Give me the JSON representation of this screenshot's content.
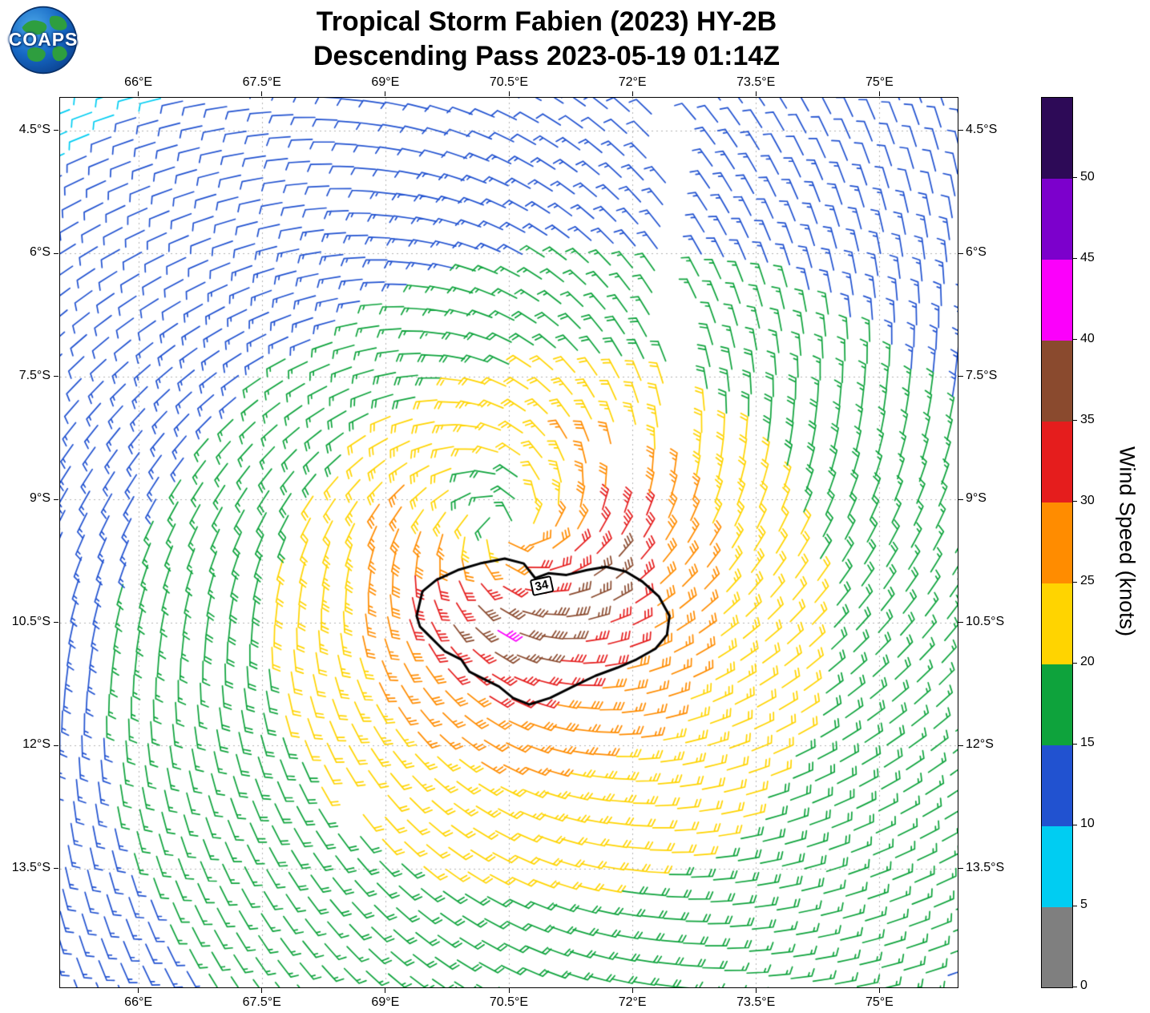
{
  "header": {
    "title_line1": "Tropical Storm Fabien (2023) HY-2B",
    "title_line2": "Descending Pass 2023-05-19 01:14Z"
  },
  "logo": {
    "text": "COAPS"
  },
  "chart_data": {
    "type": "wind_barb_map",
    "title": "Tropical Storm Fabien (2023) HY-2B",
    "subtitle": "Descending Pass 2023-05-19 01:14Z",
    "satellite": "HY-2B",
    "units": "knots",
    "lon_range": [
      65.05,
      75.95
    ],
    "lat_range": [
      -4.1,
      -14.95
    ],
    "x_ticks": {
      "values": [
        66,
        67.5,
        69,
        70.5,
        72,
        73.5,
        75
      ],
      "labels": [
        "66°E",
        "67.5°E",
        "69°E",
        "70.5°E",
        "72°E",
        "73.5°E",
        "75°E"
      ]
    },
    "y_ticks": {
      "values": [
        -4.5,
        -6,
        -7.5,
        -9,
        -10.5,
        -12,
        -13.5
      ],
      "labels": [
        "4.5°S",
        "6°S",
        "7.5°S",
        "9°S",
        "10.5°S",
        "12°S",
        "13.5°S"
      ]
    },
    "barb_grid": {
      "spacing_deg": 0.27,
      "angle_deg": -7
    },
    "wind_model": {
      "rotation": "clockwise",
      "center_lonlat": [
        70.5,
        -9.3
      ],
      "radius_max_wind_deg": 1.4,
      "speed_at_center_knots": 20,
      "max_mean_speed_knots": 31,
      "outer_decay_exponent": 0.55,
      "asymmetry_amplitude": 0.25,
      "asymmetry_direction_deg": -69,
      "inflow_angle_deg": 25,
      "hot_spot": {
        "center_lonlat": [
          70.3,
          -10.35
        ],
        "amp_knots": 6,
        "sigma_deg": 0.22
      }
    },
    "contour": {
      "level_knots": 34,
      "label": "34",
      "label_pos": [
        70.9,
        -10.05
      ],
      "polygon": [
        [
          69.38,
          -10.42
        ],
        [
          69.45,
          -10.12
        ],
        [
          69.62,
          -9.98
        ],
        [
          69.88,
          -9.86
        ],
        [
          70.15,
          -9.78
        ],
        [
          70.45,
          -9.72
        ],
        [
          70.68,
          -9.78
        ],
        [
          70.82,
          -9.96
        ],
        [
          70.98,
          -9.9
        ],
        [
          71.2,
          -9.92
        ],
        [
          71.45,
          -9.86
        ],
        [
          71.68,
          -9.82
        ],
        [
          71.92,
          -9.88
        ],
        [
          72.12,
          -10.0
        ],
        [
          72.32,
          -10.18
        ],
        [
          72.45,
          -10.42
        ],
        [
          72.42,
          -10.65
        ],
        [
          72.28,
          -10.82
        ],
        [
          72.05,
          -10.95
        ],
        [
          71.82,
          -11.05
        ],
        [
          71.55,
          -11.15
        ],
        [
          71.28,
          -11.28
        ],
        [
          71.0,
          -11.42
        ],
        [
          70.75,
          -11.5
        ],
        [
          70.55,
          -11.42
        ],
        [
          70.38,
          -11.28
        ],
        [
          70.18,
          -11.18
        ],
        [
          70.02,
          -11.1
        ],
        [
          69.92,
          -10.95
        ],
        [
          69.72,
          -10.85
        ],
        [
          69.55,
          -10.68
        ],
        [
          69.42,
          -10.55
        ]
      ]
    },
    "data_gaps": [
      {
        "type": "band",
        "lon_center": 72.58,
        "half_width_deg": 0.16,
        "lat_min": -8.5,
        "lat_max": -4.0
      },
      {
        "type": "circle",
        "center": [
          71.85,
          -8.6
        ],
        "radius_deg": 0.3
      },
      {
        "type": "circle",
        "center": [
          68.6,
          -12.6
        ],
        "radius_deg": 0.26
      }
    ],
    "colorbar": {
      "label": "Wind Speed (knots)",
      "vmin": 0,
      "vmax": 55,
      "bin_size": 5,
      "tick_values": [
        0,
        5,
        10,
        15,
        20,
        25,
        30,
        35,
        40,
        45,
        50
      ],
      "tick_labels": [
        "0",
        "5",
        "10",
        "15",
        "20",
        "25",
        "30",
        "35",
        "40",
        "45",
        "50"
      ],
      "colors": [
        "#7f7f7f",
        "#00cdf2",
        "#2152d0",
        "#0ea33c",
        "#ffd400",
        "#ff8c00",
        "#e51d1d",
        "#8a4a2e",
        "#fb00fb",
        "#7c00cc",
        "#2d0a57"
      ]
    }
  }
}
